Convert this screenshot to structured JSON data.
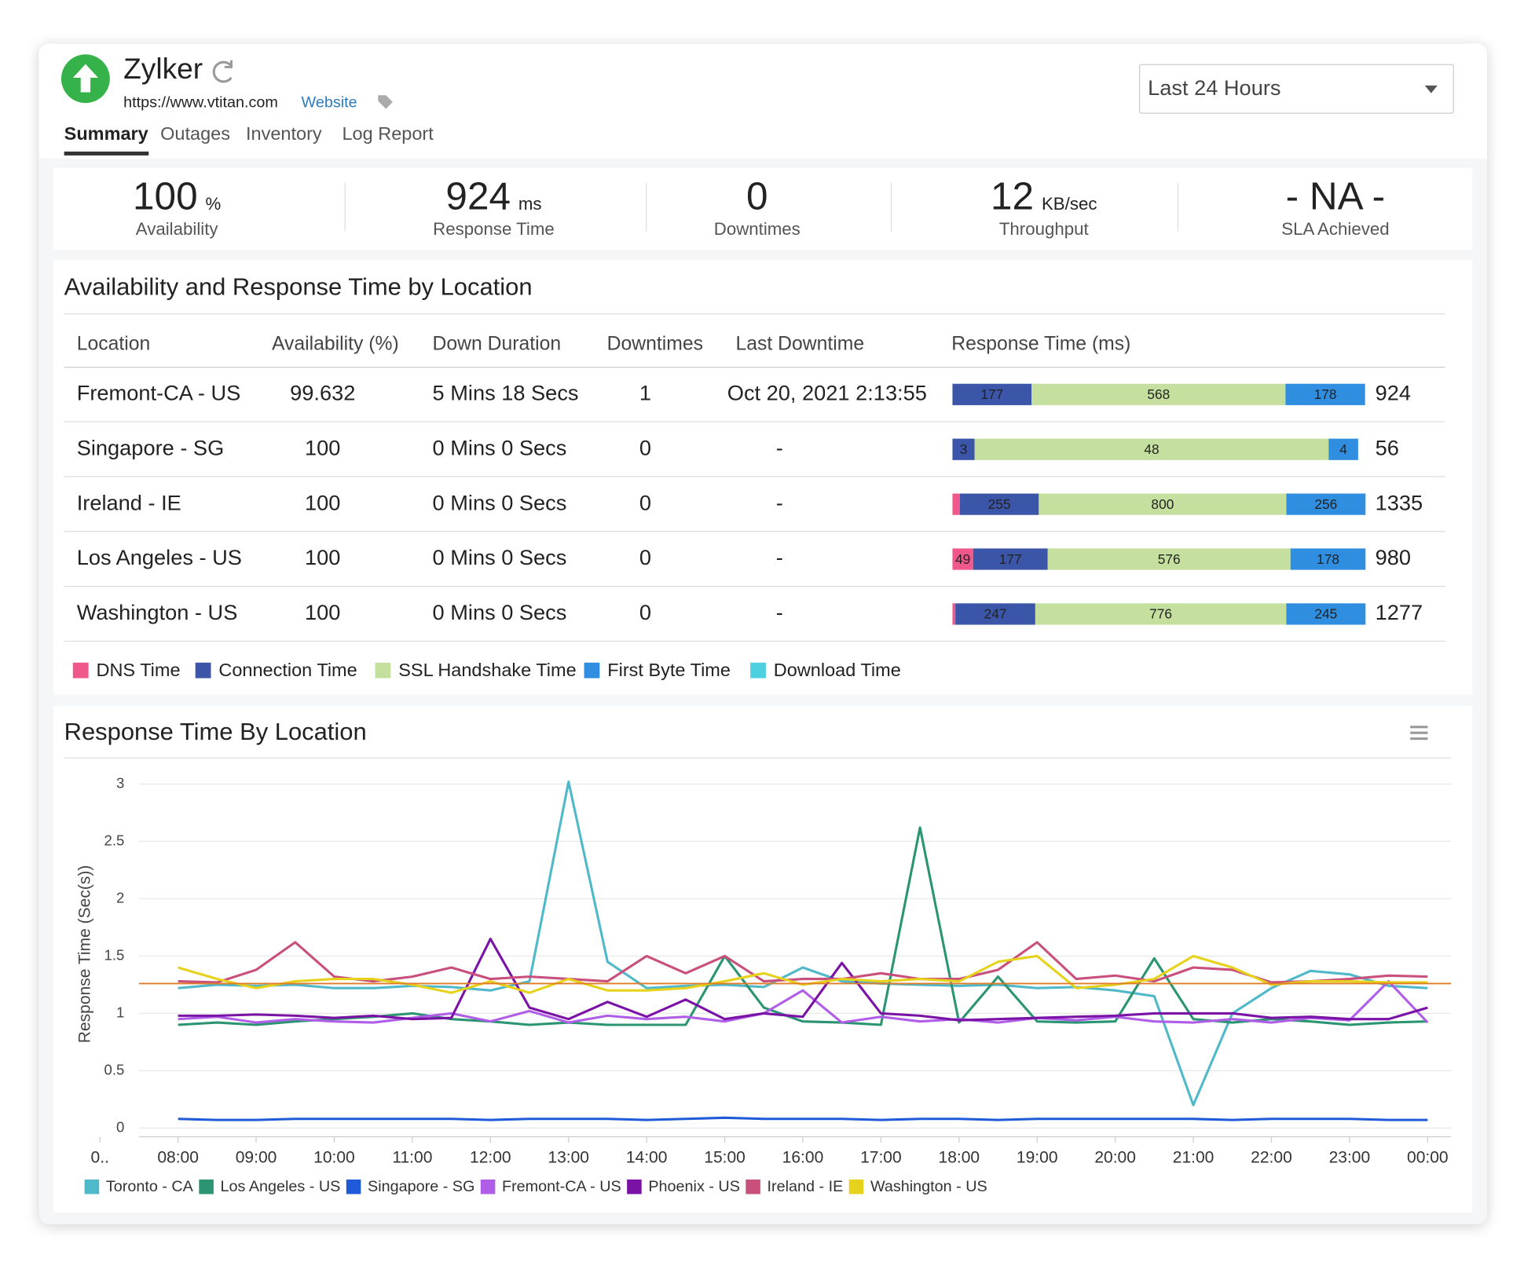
{
  "header": {
    "title": "Zylker",
    "url": "https://www.vtitan.com",
    "link": "Website",
    "period": "Last 24 Hours"
  },
  "tabs": [
    "Summary",
    "Outages",
    "Inventory",
    "Log Report"
  ],
  "stats": [
    {
      "value": 100,
      "unit": "%",
      "label": "Availability"
    },
    {
      "value": 924,
      "unit": "ms",
      "label": "Response Time"
    },
    {
      "value": 0,
      "label": "Downtimes"
    },
    {
      "value": 12,
      "unit": "KB/sec",
      "label": "Throughput"
    },
    {
      "value": "- NA -",
      "label": "SLA Achieved"
    }
  ],
  "table": {
    "title": "Availability and Response Time by Location",
    "columns": [
      "Location",
      "Availability (%)",
      "Down Duration",
      "Downtimes",
      "Last Downtime",
      "Response Time (ms)"
    ],
    "rows": [
      {
        "location": "Fremont-CA - US",
        "availability": 99.632,
        "down_duration": "5 Mins 18 Secs",
        "downtimes": 1,
        "last_downtime": "Oct 20, 2021 2:13:55",
        "segments": [
          null,
          177,
          568,
          178,
          null
        ],
        "total": 924
      },
      {
        "location": "Singapore - SG",
        "availability": 100,
        "down_duration": "0 Mins 0 Secs",
        "downtimes": 0,
        "last_downtime": "-",
        "segments": [
          null,
          3,
          48,
          4,
          null
        ],
        "total": 56
      },
      {
        "location": "Ireland - IE",
        "availability": 100,
        "down_duration": "0 Mins 0 Secs",
        "downtimes": 0,
        "last_downtime": "-",
        "segments": [
          24,
          255,
          800,
          256,
          null
        ],
        "total": 1335
      },
      {
        "location": "Los Angeles - US",
        "availability": 100,
        "down_duration": "0 Mins 0 Secs",
        "downtimes": 0,
        "last_downtime": "-",
        "segments": [
          49,
          177,
          576,
          178,
          null
        ],
        "total": 980
      },
      {
        "location": "Washington - US",
        "availability": 100,
        "down_duration": "0 Mins 0 Secs",
        "downtimes": 0,
        "last_downtime": "-",
        "segments": [
          9,
          247,
          776,
          245,
          null
        ],
        "total": 1277
      }
    ],
    "legend": [
      {
        "name": "DNS Time",
        "color": "#f0578a"
      },
      {
        "name": "Connection Time",
        "color": "#3b55a8"
      },
      {
        "name": "SSL Handshake Time",
        "color": "#c5e09e"
      },
      {
        "name": "First Byte Time",
        "color": "#2f8ee0"
      },
      {
        "name": "Download Time",
        "color": "#4fd0e0"
      }
    ]
  },
  "chart_data": {
    "type": "line",
    "title": "Response Time By Location",
    "y_label": "Response Time (Sec(s))",
    "x": [
      8,
      8.5,
      9,
      9.5,
      10,
      10.5,
      11,
      11.5,
      12,
      12.5,
      13,
      13.5,
      14,
      14.5,
      15,
      15.5,
      16,
      16.5,
      17,
      17.5,
      18,
      18.5,
      19,
      19.5,
      20,
      20.5,
      21,
      21.5,
      22,
      22.5,
      23,
      23.5,
      24
    ],
    "xlim": [
      7.5,
      24.3
    ],
    "xticks": [
      {
        "value": 7,
        "label": "0.."
      },
      {
        "value": 8,
        "label": "08:00"
      },
      {
        "value": 9,
        "label": "09:00"
      },
      {
        "value": 10,
        "label": "10:00"
      },
      {
        "value": 11,
        "label": "11:00"
      },
      {
        "value": 12,
        "label": "12:00"
      },
      {
        "value": 13,
        "label": "13:00"
      },
      {
        "value": 14,
        "label": "14:00"
      },
      {
        "value": 15,
        "label": "15:00"
      },
      {
        "value": 16,
        "label": "16:00"
      },
      {
        "value": 17,
        "label": "17:00"
      },
      {
        "value": 18,
        "label": "18:00"
      },
      {
        "value": 19,
        "label": "19:00"
      },
      {
        "value": 20,
        "label": "20:00"
      },
      {
        "value": 21,
        "label": "21:00"
      },
      {
        "value": 22,
        "label": "22:00"
      },
      {
        "value": 23,
        "label": "23:00"
      },
      {
        "value": 24,
        "label": "00:00"
      }
    ],
    "ylim": [
      0,
      3
    ],
    "yticks": [
      0,
      0.5,
      1,
      1.5,
      2,
      2.5,
      3
    ],
    "grid": true,
    "legend": "bottom",
    "reference_line": {
      "value": 1.26,
      "color": "#e07b27"
    },
    "series": [
      {
        "name": "Toronto - CA",
        "color": "#4fb8c9",
        "values": [
          1.22,
          1.25,
          1.24,
          1.25,
          1.22,
          1.22,
          1.24,
          1.23,
          1.2,
          1.28,
          3.02,
          1.45,
          1.22,
          1.24,
          1.25,
          1.23,
          1.4,
          1.28,
          1.26,
          1.25,
          1.24,
          1.25,
          1.22,
          1.23,
          1.2,
          1.15,
          0.2,
          1.0,
          1.22,
          1.37,
          1.34,
          1.24,
          1.22
        ]
      },
      {
        "name": "Los Angeles - US",
        "color": "#2a9473",
        "values": [
          0.9,
          0.92,
          0.9,
          0.93,
          0.95,
          0.97,
          1.0,
          0.95,
          0.93,
          0.9,
          0.92,
          0.9,
          0.9,
          0.9,
          1.5,
          1.05,
          0.93,
          0.92,
          0.9,
          2.62,
          0.92,
          1.32,
          0.93,
          0.92,
          0.93,
          1.48,
          0.95,
          0.92,
          0.95,
          0.93,
          0.9,
          0.92,
          0.93
        ]
      },
      {
        "name": "Singapore - SG",
        "color": "#1f5bd8",
        "values": [
          0.08,
          0.07,
          0.07,
          0.08,
          0.08,
          0.08,
          0.08,
          0.08,
          0.07,
          0.08,
          0.08,
          0.08,
          0.07,
          0.08,
          0.09,
          0.08,
          0.08,
          0.08,
          0.07,
          0.08,
          0.08,
          0.07,
          0.08,
          0.08,
          0.08,
          0.08,
          0.08,
          0.07,
          0.08,
          0.08,
          0.08,
          0.07,
          0.07
        ]
      },
      {
        "name": "Fremont-CA - US",
        "color": "#b05ee8",
        "values": [
          0.95,
          0.97,
          0.92,
          0.95,
          0.93,
          0.92,
          0.96,
          1.0,
          0.93,
          1.02,
          0.92,
          0.98,
          0.95,
          0.97,
          0.93,
          1.0,
          1.2,
          0.92,
          0.97,
          0.93,
          0.95,
          0.92,
          0.96,
          0.94,
          0.97,
          0.93,
          0.92,
          0.95,
          0.92,
          0.96,
          0.94,
          1.28,
          0.92
        ]
      },
      {
        "name": "Phoenix - US",
        "color": "#7a12a6",
        "values": [
          0.98,
          0.98,
          0.99,
          0.98,
          0.96,
          0.98,
          0.95,
          0.96,
          1.65,
          1.05,
          0.95,
          1.1,
          0.97,
          1.12,
          0.95,
          1.0,
          0.97,
          1.44,
          1.0,
          0.98,
          0.94,
          0.95,
          0.96,
          0.97,
          0.98,
          1.0,
          1.0,
          1.0,
          0.96,
          0.97,
          0.95,
          0.95,
          1.05
        ]
      },
      {
        "name": "Ireland - IE",
        "color": "#c94f7c",
        "values": [
          1.28,
          1.27,
          1.38,
          1.62,
          1.32,
          1.28,
          1.32,
          1.4,
          1.3,
          1.32,
          1.3,
          1.28,
          1.5,
          1.35,
          1.5,
          1.28,
          1.3,
          1.3,
          1.35,
          1.3,
          1.3,
          1.38,
          1.62,
          1.3,
          1.33,
          1.28,
          1.4,
          1.38,
          1.27,
          1.28,
          1.3,
          1.33,
          1.32
        ]
      },
      {
        "name": "Washington - US",
        "color": "#e6d21a",
        "values": [
          1.4,
          1.3,
          1.22,
          1.28,
          1.3,
          1.3,
          1.25,
          1.18,
          1.28,
          1.18,
          1.3,
          1.2,
          1.2,
          1.22,
          1.28,
          1.35,
          1.25,
          1.3,
          1.28,
          1.3,
          1.28,
          1.45,
          1.5,
          1.22,
          1.25,
          1.3,
          1.5,
          1.4,
          1.25,
          1.28,
          1.28,
          1.27,
          1.27
        ]
      }
    ]
  }
}
